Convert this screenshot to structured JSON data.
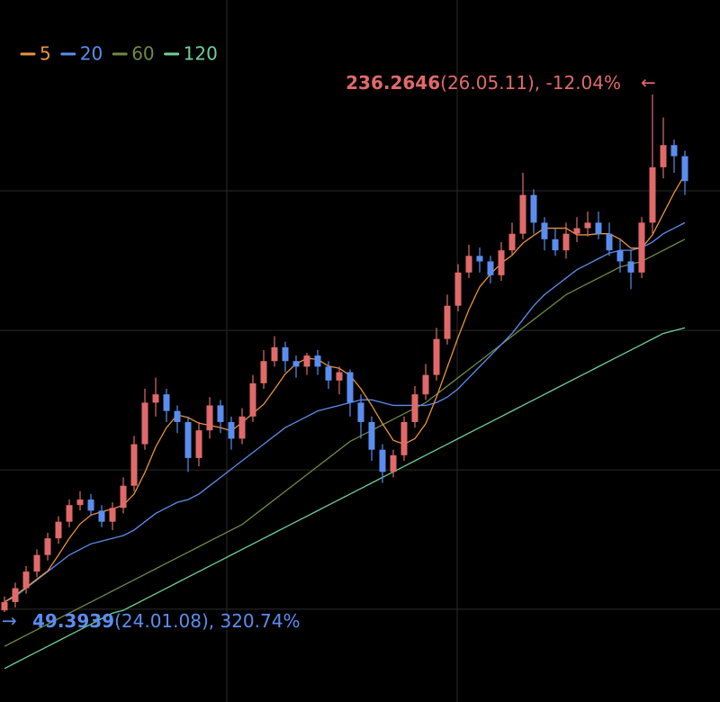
{
  "chart_data": {
    "type": "candlestick",
    "ylim": [
      16.9,
      270.4
    ],
    "yticks": [
      50.4,
      100.7,
      151.1,
      201.5
    ],
    "grid": true,
    "up_color": "#e06a6a",
    "down_color": "#5b8def",
    "open": [
      50,
      53,
      58,
      64,
      70,
      76,
      82,
      88,
      90,
      86,
      82,
      87,
      95,
      110,
      125,
      128,
      122,
      118,
      105,
      115,
      124,
      118,
      112,
      120,
      132,
      140,
      145,
      140,
      138,
      142,
      138,
      133,
      136,
      125,
      118,
      108,
      100,
      106,
      118,
      128,
      135,
      148,
      160,
      172,
      178,
      176,
      171,
      180,
      186,
      200,
      190,
      184,
      180,
      186,
      188,
      190,
      186,
      180,
      176,
      172,
      190,
      210,
      218,
      214
    ],
    "high": [
      55,
      60,
      66,
      72,
      78,
      84,
      90,
      93,
      92,
      88,
      89,
      98,
      113,
      130,
      134,
      130,
      124,
      120,
      118,
      127,
      126,
      120,
      123,
      135,
      144,
      149,
      147,
      142,
      143,
      144,
      140,
      138,
      137,
      128,
      120,
      110,
      108,
      120,
      131,
      139,
      152,
      164,
      175,
      182,
      181,
      178,
      183,
      190,
      208,
      202,
      192,
      188,
      190,
      192,
      194,
      194,
      190,
      184,
      180,
      192,
      236.2646,
      228,
      220,
      216
    ],
    "low": [
      49.3939,
      51,
      56,
      62,
      68,
      74,
      80,
      86,
      84,
      80,
      79,
      85,
      93,
      108,
      120,
      118,
      114,
      100,
      102,
      112,
      114,
      108,
      110,
      118,
      130,
      138,
      136,
      134,
      135,
      135,
      130,
      128,
      120,
      112,
      104,
      96,
      98,
      104,
      116,
      126,
      133,
      146,
      158,
      170,
      172,
      168,
      169,
      178,
      184,
      186,
      180,
      178,
      177,
      183,
      185,
      184,
      178,
      172,
      166,
      170,
      186,
      206,
      208,
      200
    ],
    "close": [
      53,
      58,
      64,
      70,
      76,
      82,
      88,
      90,
      86,
      82,
      87,
      95,
      110,
      125,
      128,
      122,
      118,
      105,
      115,
      124,
      118,
      112,
      120,
      132,
      140,
      145,
      140,
      138,
      142,
      138,
      133,
      136,
      125,
      118,
      108,
      100,
      106,
      118,
      128,
      135,
      148,
      160,
      172,
      178,
      176,
      171,
      180,
      186,
      200,
      190,
      184,
      180,
      186,
      188,
      190,
      186,
      180,
      176,
      172,
      190,
      210,
      218,
      214,
      205
    ],
    "series": [
      {
        "name": "5",
        "color": "#e8923f",
        "values": [
          53,
          55.5,
          58.3,
          61.3,
          64.2,
          70,
          76,
          81.2,
          84.4,
          85.6,
          86.6,
          88,
          92,
          99.8,
          109,
          116,
          120.6,
          119.6,
          117.6,
          116.8,
          116,
          114.8,
          117.8,
          121.2,
          124.4,
          129.8,
          135.4,
          139,
          141,
          140.6,
          138.2,
          137.4,
          134.8,
          130,
          124,
          117.4,
          111.4,
          110,
          112,
          117.4,
          127,
          137.8,
          148.6,
          158.6,
          166.8,
          171.4,
          175.4,
          178.2,
          182.6,
          185.4,
          188,
          188,
          188,
          185.6,
          185.6,
          186,
          186,
          184,
          180.8,
          180.8,
          185.6,
          193.2,
          200.8,
          207.4
        ]
      },
      {
        "name": "20",
        "color": "#5b8def",
        "values": [
          53,
          55,
          58,
          61,
          64,
          67,
          70,
          72,
          74,
          75,
          76,
          77,
          79,
          82,
          85,
          87,
          89,
          90,
          92,
          95,
          98,
          101,
          104,
          107,
          110,
          113,
          116,
          118,
          120,
          122,
          123,
          124,
          125,
          126,
          126,
          125,
          124,
          124,
          124,
          124,
          125,
          127,
          130,
          134,
          138,
          142,
          146,
          150,
          155,
          160,
          164,
          167,
          170,
          173,
          175,
          177,
          179,
          180,
          180,
          181,
          183,
          186,
          188,
          190
        ]
      },
      {
        "name": "60",
        "color": "#6f8a45",
        "values": [
          37,
          39,
          41,
          43,
          45,
          47,
          49,
          51,
          53,
          55,
          57,
          59,
          61,
          63,
          65,
          67,
          69,
          71,
          73,
          75,
          77,
          79,
          81,
          84,
          87,
          90,
          93,
          96,
          99,
          102,
          105,
          108,
          111,
          113,
          115,
          117,
          119,
          121,
          123,
          125,
          128,
          131,
          134,
          137,
          140,
          143,
          146,
          149,
          152,
          155,
          158,
          161,
          164,
          166,
          168,
          170,
          172,
          174,
          175,
          176,
          178,
          180,
          182,
          184
        ]
      },
      {
        "name": "120",
        "color": "#6fcf97",
        "values": [
          29,
          31,
          33,
          35,
          37,
          39,
          41,
          43,
          45,
          47,
          49,
          50,
          52,
          54,
          56,
          58,
          60,
          62,
          64,
          66,
          68,
          70,
          72,
          74,
          76,
          78,
          80,
          82,
          84,
          86,
          88,
          90,
          92,
          94,
          96,
          98,
          100,
          102,
          104,
          106,
          108,
          110,
          112,
          114,
          116,
          118,
          120,
          122,
          124,
          126,
          128,
          130,
          132,
          134,
          136,
          138,
          140,
          142,
          144,
          146,
          148,
          150,
          151,
          152
        ]
      }
    ],
    "high_annotation": {
      "arrow": "←",
      "value": 236.2646,
      "text": "(26.05.11), -12.04%",
      "color": "#e06a6a"
    },
    "low_annotation": {
      "arrow": "→",
      "value": 49.3939,
      "text": "(24.01.08), 320.74%",
      "color": "#5b8def"
    }
  }
}
